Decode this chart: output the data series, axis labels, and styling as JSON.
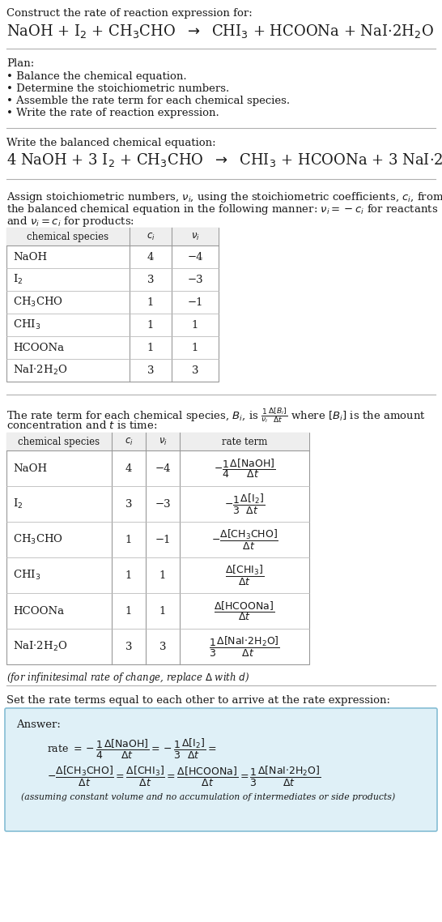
{
  "bg_color": "#ffffff",
  "text_color": "#000000",
  "title_line1": "Construct the rate of reaction expression for:",
  "plan_title": "Plan:",
  "plan_items": [
    "• Balance the chemical equation.",
    "• Determine the stoichiometric numbers.",
    "• Assemble the rate term for each chemical species.",
    "• Write the rate of reaction expression."
  ],
  "balanced_label": "Write the balanced chemical equation:",
  "stoich_intro1": "Assign stoichiometric numbers, $\\nu_i$, using the stoichiometric coefficients, $c_i$, from",
  "stoich_intro2": "the balanced chemical equation in the following manner: $\\nu_i = -c_i$ for reactants",
  "stoich_intro3": "and $\\nu_i = c_i$ for products:",
  "rate_intro1": "The rate term for each chemical species, $B_i$, is $\\frac{1}{\\nu_i}\\frac{\\Delta[B_i]}{\\Delta t}$ where $[B_i]$ is the amount",
  "rate_intro2": "concentration and $t$ is time:",
  "infinitesimal_note": "(for infinitesimal rate of change, replace $\\Delta$ with $d$)",
  "set_rate_text": "Set the rate terms equal to each other to arrive at the rate expression:",
  "answer_box_color": "#dff0f7",
  "answer_box_border": "#85bdd4",
  "answer_label": "Answer:",
  "table1_species": [
    "NaOH",
    "I$_2$",
    "CH$_3$CHO",
    "CHI$_3$",
    "HCOONa",
    "NaI$\\cdot$2H$_2$O"
  ],
  "table1_ci": [
    "4",
    "3",
    "1",
    "1",
    "1",
    "3"
  ],
  "table1_vi": [
    "−4",
    "−3",
    "−1",
    "1",
    "1",
    "3"
  ],
  "table2_species": [
    "NaOH",
    "I$_2$",
    "CH$_3$CHO",
    "CHI$_3$",
    "HCOONa",
    "NaI$\\cdot$2H$_2$O"
  ],
  "table2_ci": [
    "4",
    "3",
    "1",
    "1",
    "1",
    "3"
  ],
  "table2_vi": [
    "−4",
    "−3",
    "−1",
    "1",
    "1",
    "3"
  ]
}
